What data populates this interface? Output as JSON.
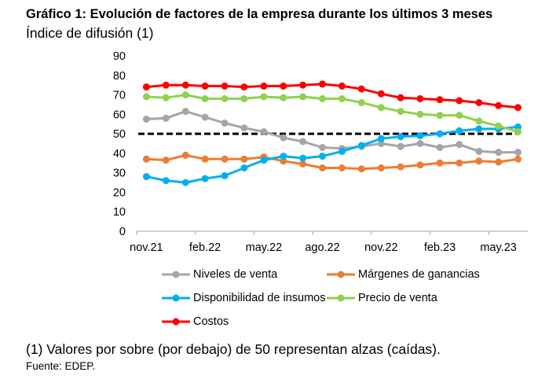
{
  "chart_data": {
    "type": "line",
    "title": "Gráfico 1: Evolución de factores de la empresa durante los últimos 3 meses",
    "subtitle": "Índice de difusión (1)",
    "categories": [
      "nov.21",
      "",
      "",
      "feb.22",
      "",
      "",
      "may.22",
      "",
      "",
      "ago.22",
      "",
      "",
      "nov.22",
      "",
      "",
      "feb.23",
      "",
      "",
      "may.23",
      ""
    ],
    "ylim": [
      0,
      90
    ],
    "yticks": [
      0,
      10,
      20,
      30,
      40,
      50,
      60,
      70,
      80,
      90
    ],
    "grid": false,
    "legend_position": "bottom",
    "reference_line": {
      "y": 50,
      "color": "#000000",
      "style": "dashed"
    },
    "series": [
      {
        "name": "Niveles de venta",
        "color": "#A5A5A5",
        "values": [
          57.5,
          58,
          61.5,
          58.5,
          55.5,
          53,
          51,
          48,
          46,
          43,
          42.5,
          43.5,
          45,
          43.5,
          45,
          43,
          44.5,
          41,
          40.5,
          40.5
        ]
      },
      {
        "name": "Márgenes de ganancias",
        "color": "#ED7D31",
        "values": [
          37,
          36.5,
          39,
          37,
          37,
          37,
          38,
          36,
          34.5,
          32.5,
          32.5,
          32,
          32.5,
          33,
          34,
          35,
          35,
          36,
          35.5,
          37
        ]
      },
      {
        "name": "Disponibilidad de insumos",
        "color": "#00B0F0",
        "values": [
          28,
          26,
          25,
          27,
          28.5,
          32.5,
          36.5,
          38.5,
          37.5,
          38.5,
          41,
          44,
          47.5,
          48.5,
          49,
          50,
          51.5,
          52.5,
          52.5,
          53.5
        ]
      },
      {
        "name": "Precio de venta",
        "color": "#92D050",
        "values": [
          69,
          68.5,
          70,
          68,
          68,
          68,
          69,
          68.5,
          69,
          68,
          68,
          66,
          63.5,
          61.5,
          60,
          59.5,
          59.5,
          56.5,
          54,
          51
        ]
      },
      {
        "name": "Costos",
        "color": "#FF0000",
        "values": [
          74,
          75,
          75,
          74.5,
          74.5,
          74,
          74.5,
          74.5,
          75,
          75.5,
          74.5,
          73,
          70.5,
          68.5,
          68,
          67.5,
          67,
          66,
          64.5,
          63.5
        ]
      }
    ]
  },
  "footnote": "(1) Valores por sobre (por debajo) de 50 representan alzas (caídas).",
  "source": "Fuente: EDEP."
}
